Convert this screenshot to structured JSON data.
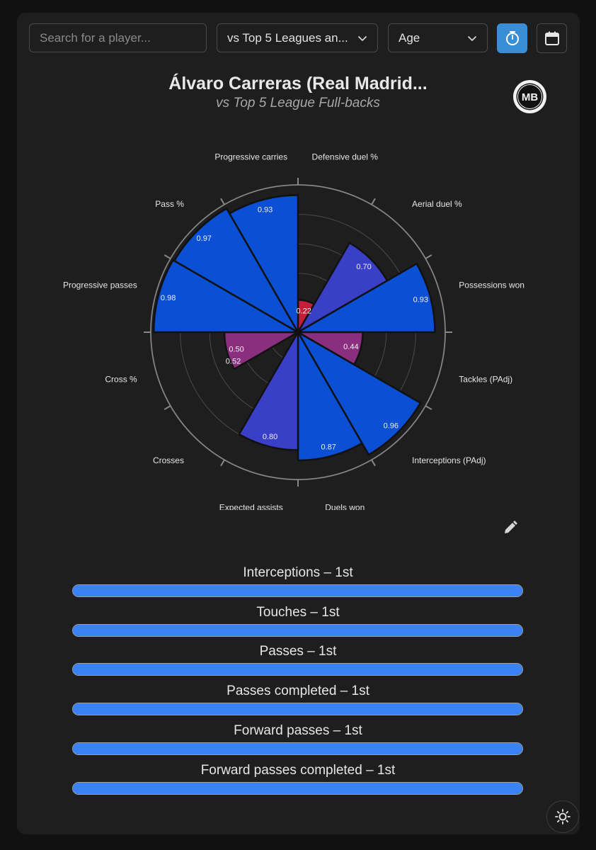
{
  "controls": {
    "search_placeholder": "Search for a player...",
    "comparison_select": "vs Top 5 Leagues an...",
    "age_select": "Age"
  },
  "header": {
    "title": "Álvaro Carreras (Real Madrid...",
    "subtitle": "vs Top 5 League Full-backs",
    "logo_text": "MB"
  },
  "chart_data": {
    "type": "polar-bar",
    "title": "Álvaro Carreras (Real Madrid...",
    "subtitle": "vs Top 5 League Full-backs",
    "rlim": [
      0,
      1
    ],
    "grid": true,
    "categories": [
      "Defensive duel %",
      "Aerial duel %",
      "Possessions won",
      "Tackles (PAdj)",
      "Interceptions (PAdj)",
      "Duels won",
      "Expected assists",
      "Crosses",
      "Cross %",
      "Progressive passes",
      "Pass %",
      "Progressive carries"
    ],
    "values": [
      0.22,
      0.7,
      0.93,
      0.44,
      0.96,
      0.87,
      0.8,
      0,
      0.5,
      0.98,
      0.97,
      0.93
    ],
    "value_labels": [
      "0.22",
      "0.70",
      "0.93",
      "0.44",
      "0.96",
      "0.87",
      "0.80",
      "",
      "0.50",
      "0.98",
      "0.97",
      "0.93"
    ],
    "extra_label": "0.52",
    "colors": {
      "high": "#0a4fd4",
      "mid": "#3a3fc8",
      "low_mid": "#8a2f80",
      "low": "#c41e3a",
      "grid": "#6a6a6c",
      "background": "#1e1e1f"
    }
  },
  "ranks": [
    {
      "label": "Interceptions – 1st",
      "fill": 1.0
    },
    {
      "label": "Touches – 1st",
      "fill": 1.0
    },
    {
      "label": "Passes – 1st",
      "fill": 1.0
    },
    {
      "label": "Passes completed – 1st",
      "fill": 1.0
    },
    {
      "label": "Forward passes – 1st",
      "fill": 1.0
    },
    {
      "label": "Forward passes completed – 1st",
      "fill": 1.0
    }
  ],
  "theme": {
    "accent": "#3a8ed6",
    "bar": "#3b82f6"
  }
}
